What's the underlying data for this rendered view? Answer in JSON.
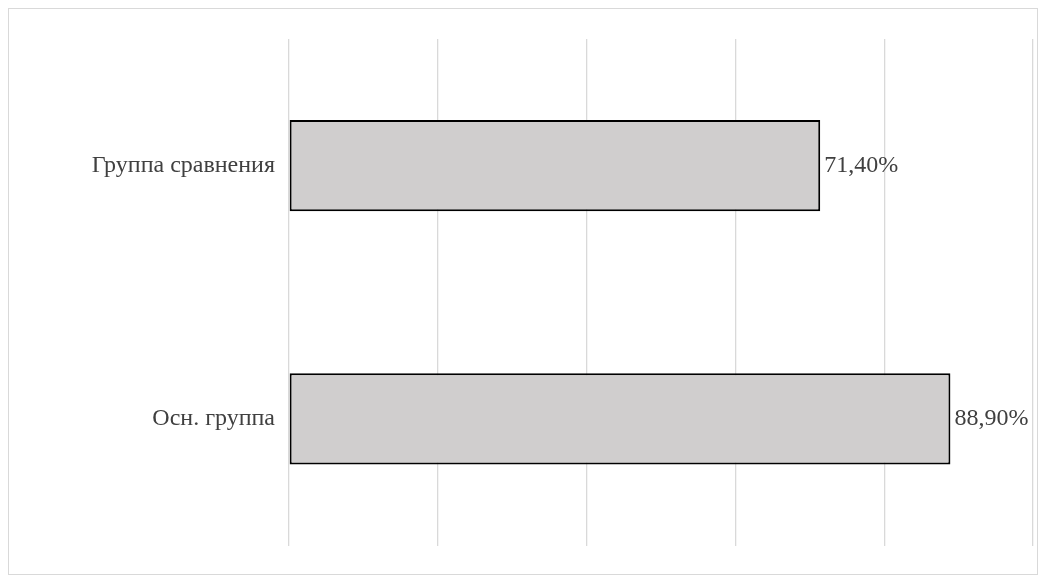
{
  "chart_data": {
    "type": "bar",
    "orientation": "horizontal",
    "categories": [
      "Группа сравнения",
      "Осн. группа"
    ],
    "values": [
      71.4,
      88.9
    ],
    "value_labels": [
      "71,40%",
      "88,90%"
    ],
    "color": "#d0cece",
    "xlim": [
      0,
      100
    ],
    "grid": "x",
    "tick_labels": "y",
    "legend": false
  }
}
